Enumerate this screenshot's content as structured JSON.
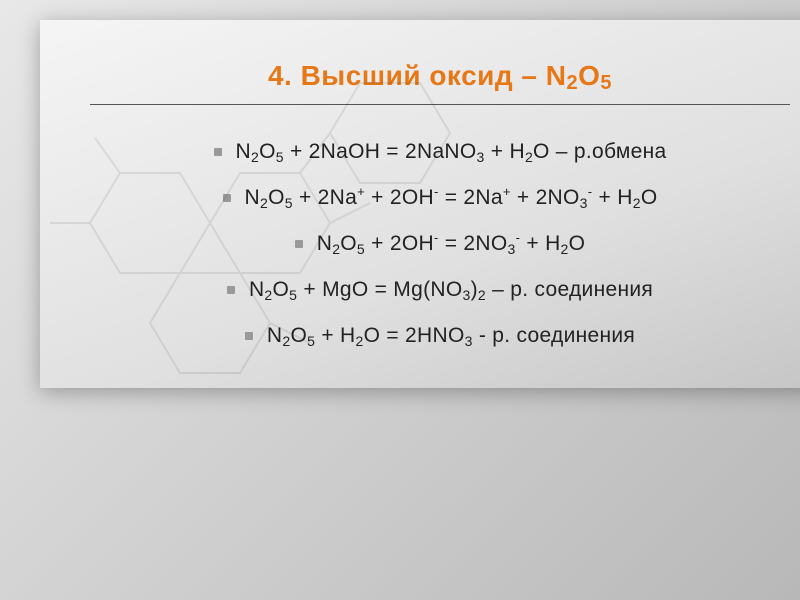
{
  "slide": {
    "title_prefix": "4. Высший оксид – N",
    "title_sub1": "2",
    "title_mid": "O",
    "title_sub2": "5",
    "title_color": "#e67817",
    "title_fontsize": 28,
    "body_fontsize": 21,
    "body_color": "#222222",
    "divider_color": "#555555",
    "bullet_color": "#999999",
    "background_gradient_start": "#f5f5f5",
    "background_gradient_end": "#c5c5c5",
    "equations": [
      {
        "parts": [
          {
            "t": "N"
          },
          {
            "sub": "2"
          },
          {
            "t": "O"
          },
          {
            "sub": "5"
          },
          {
            "t": " + 2NaOH = 2NaNO"
          },
          {
            "sub": "3"
          },
          {
            "t": " + H"
          },
          {
            "sub": "2"
          },
          {
            "t": "O – р.обмена"
          }
        ]
      },
      {
        "parts": [
          {
            "t": "N"
          },
          {
            "sub": "2"
          },
          {
            "t": "O"
          },
          {
            "sub": "5"
          },
          {
            "t": " + 2Na"
          },
          {
            "sup": "+"
          },
          {
            "t": " + 2OH"
          },
          {
            "sup": "-"
          },
          {
            "t": " = 2Na"
          },
          {
            "sup": "+"
          },
          {
            "t": " + 2NO"
          },
          {
            "sub": "3"
          },
          {
            "sup": "-"
          },
          {
            "t": " + H"
          },
          {
            "sub": "2"
          },
          {
            "t": "O"
          }
        ]
      },
      {
        "parts": [
          {
            "t": "N"
          },
          {
            "sub": "2"
          },
          {
            "t": "O"
          },
          {
            "sub": "5"
          },
          {
            "t": " +   2OH"
          },
          {
            "sup": "-"
          },
          {
            "t": " = 2NO"
          },
          {
            "sub": "3"
          },
          {
            "sup": "-"
          },
          {
            "t": " + H"
          },
          {
            "sub": "2"
          },
          {
            "t": "O"
          }
        ]
      },
      {
        "parts": [
          {
            "t": "N"
          },
          {
            "sub": "2"
          },
          {
            "t": "O"
          },
          {
            "sub": "5"
          },
          {
            "t": " + MgO = Mg(NO"
          },
          {
            "sub": "3"
          },
          {
            "t": ")"
          },
          {
            "sub": "2"
          },
          {
            "t": " – р. соединения"
          }
        ]
      },
      {
        "parts": [
          {
            "t": "N"
          },
          {
            "sub": "2"
          },
          {
            "t": "O"
          },
          {
            "sub": "5"
          },
          {
            "t": " + H"
          },
          {
            "sub": "2"
          },
          {
            "t": "O = 2HNO"
          },
          {
            "sub": "3"
          },
          {
            "t": "  - р. соединения"
          }
        ]
      }
    ]
  }
}
